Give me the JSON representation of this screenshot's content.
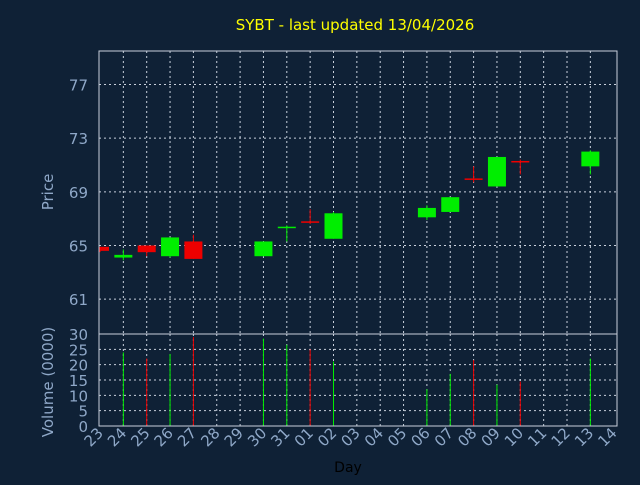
{
  "chart_data": {
    "type": "candlestick",
    "title": "SYBT - last updated 13/04/2026",
    "xlabel": "Day",
    "ylabel_price": "Price",
    "ylabel_volume": "Volume (0000)",
    "price_ylim": [
      58.4,
      79.5
    ],
    "price_yticks": [
      61,
      65,
      69,
      73,
      77
    ],
    "volume_ylim": [
      0,
      30
    ],
    "volume_yticks": [
      0,
      5,
      10,
      15,
      20,
      25,
      30
    ],
    "x_ticks": [
      "23",
      "24",
      "25",
      "26",
      "27",
      "28",
      "29",
      "30",
      "31",
      "01",
      "02",
      "03",
      "04",
      "05",
      "06",
      "07",
      "08",
      "09",
      "10",
      "11",
      "12",
      "13",
      "14"
    ],
    "grid": true,
    "colors": {
      "background": "#0f2136",
      "frame": "#c8d0dc",
      "grid": "#c8d0dc",
      "axis_text": "#8fa8c8",
      "title": "#ffff00",
      "up": "#00ee00",
      "down": "#ee0000"
    },
    "candles": [
      {
        "day": "23",
        "open": 64.9,
        "high": 64.9,
        "low": 64.5,
        "close": 64.6
      },
      {
        "day": "24",
        "open": 64.1,
        "high": 64.7,
        "low": 63.9,
        "close": 64.3
      },
      {
        "day": "25",
        "open": 65.0,
        "high": 65.0,
        "low": 64.2,
        "close": 64.5
      },
      {
        "day": "26",
        "open": 64.2,
        "high": 65.6,
        "low": 64.1,
        "close": 65.6
      },
      {
        "day": "27",
        "open": 65.3,
        "high": 65.8,
        "low": 64.0,
        "close": 64.0
      },
      {
        "day": "30",
        "open": 64.2,
        "high": 65.3,
        "low": 64.2,
        "close": 65.3
      },
      {
        "day": "31",
        "open": 66.3,
        "high": 66.5,
        "low": 65.3,
        "close": 66.4
      },
      {
        "day": "01",
        "open": 66.8,
        "high": 67.7,
        "low": 66.6,
        "close": 66.7
      },
      {
        "day": "02",
        "open": 65.5,
        "high": 67.5,
        "low": 65.5,
        "close": 67.4
      },
      {
        "day": "06",
        "open": 67.1,
        "high": 68.0,
        "low": 66.9,
        "close": 67.8
      },
      {
        "day": "07",
        "open": 67.5,
        "high": 68.6,
        "low": 67.5,
        "close": 68.6
      },
      {
        "day": "08",
        "open": 70.0,
        "high": 70.9,
        "low": 69.7,
        "close": 69.9
      },
      {
        "day": "09",
        "open": 69.4,
        "high": 71.6,
        "low": 69.4,
        "close": 71.6
      },
      {
        "day": "10",
        "open": 71.3,
        "high": 71.4,
        "low": 70.3,
        "close": 71.2
      },
      {
        "day": "13",
        "open": 70.9,
        "high": 72.1,
        "low": 70.3,
        "close": 72.0
      }
    ],
    "volume": [
      {
        "day": "24",
        "value": 24,
        "dir": "up"
      },
      {
        "day": "25",
        "value": 22,
        "dir": "down"
      },
      {
        "day": "26",
        "value": 23.5,
        "dir": "up"
      },
      {
        "day": "27",
        "value": 29,
        "dir": "down"
      },
      {
        "day": "30",
        "value": 28.5,
        "dir": "up"
      },
      {
        "day": "31",
        "value": 26.5,
        "dir": "up"
      },
      {
        "day": "01",
        "value": 25,
        "dir": "down"
      },
      {
        "day": "02",
        "value": 21,
        "dir": "up"
      },
      {
        "day": "06",
        "value": 12,
        "dir": "up"
      },
      {
        "day": "07",
        "value": 17,
        "dir": "up"
      },
      {
        "day": "08",
        "value": 21.5,
        "dir": "down"
      },
      {
        "day": "09",
        "value": 13.5,
        "dir": "up"
      },
      {
        "day": "10",
        "value": 14.5,
        "dir": "down"
      },
      {
        "day": "13",
        "value": 22,
        "dir": "up"
      }
    ]
  }
}
